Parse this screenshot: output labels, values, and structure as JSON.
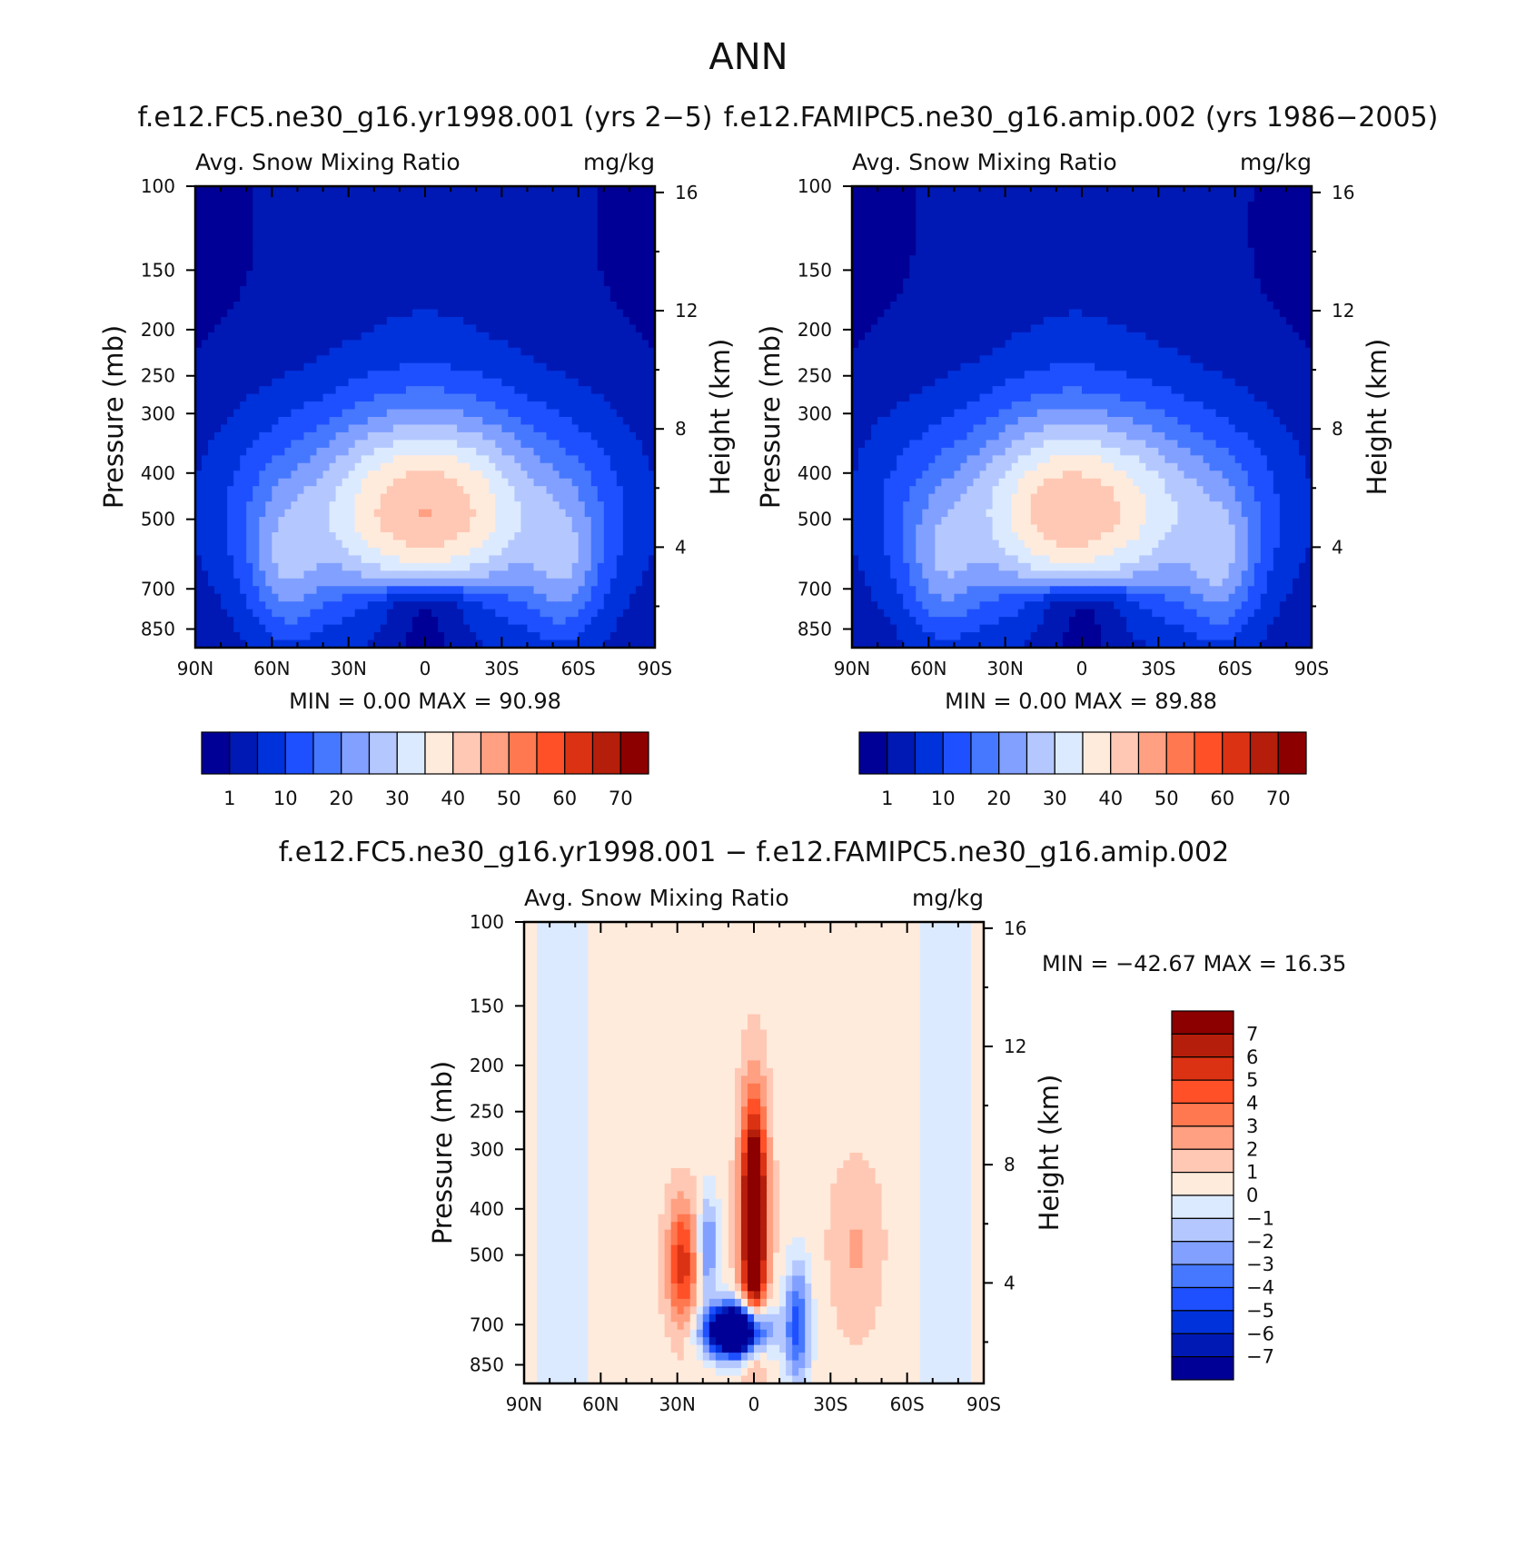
{
  "chart_data": {
    "type": "heatmap",
    "title": "ANN",
    "variable": "Avg. Snow Mixing Ratio",
    "units": "mg/kg",
    "lat_ticks": [
      "90N",
      "60N",
      "30N",
      "0",
      "30S",
      "60S",
      "90S"
    ],
    "pressure_ticks": [
      "100",
      "150",
      "200",
      "250",
      "300",
      "400",
      "500",
      "700",
      "850"
    ],
    "height_ticks": [
      "16",
      "12",
      "8",
      "4"
    ],
    "ylabel": "Pressure (mb)",
    "ylabel_right": "Height (km)",
    "min_label": "MIN =",
    "max_label": "MAX =",
    "panels": [
      {
        "title": "f.e12.FC5.ne30_g16.yr1998.001 (yrs 2-5)",
        "min": "0.00",
        "max": "90.98",
        "colorbar_levels": [
          "1",
          "10",
          "20",
          "30",
          "40",
          "50",
          "60",
          "70"
        ],
        "colors": [
          "#000096",
          "#0019b4",
          "#0032dc",
          "#1e50ff",
          "#4678ff",
          "#82a0ff",
          "#b4c8ff",
          "#dceaff",
          "#ffebdc",
          "#ffc8b4",
          "#ffa082",
          "#ff7850",
          "#ff5028",
          "#dc3214",
          "#b41e0a",
          "#8c0000"
        ]
      },
      {
        "title": "f.e12.FAMIPC5.ne30_g16.amip.002 (yrs 1986-2005)",
        "min": "0.00",
        "max": "89.88",
        "colorbar_levels": [
          "1",
          "10",
          "20",
          "30",
          "40",
          "50",
          "60",
          "70"
        ],
        "colors": [
          "#000096",
          "#0019b4",
          "#0032dc",
          "#1e50ff",
          "#4678ff",
          "#82a0ff",
          "#b4c8ff",
          "#dceaff",
          "#ffebdc",
          "#ffc8b4",
          "#ffa082",
          "#ff7850",
          "#ff5028",
          "#dc3214",
          "#b41e0a",
          "#8c0000"
        ]
      },
      {
        "title": "f.e12.FC5.ne30_g16.yr1998.001 - f.e12.FAMIPC5.ne30_g16.amip.002",
        "min": "-42.67",
        "max": "16.35",
        "colorbar_levels": [
          "7",
          "6",
          "5",
          "4",
          "3",
          "2",
          "1",
          "0",
          "-1",
          "-2",
          "-3",
          "-4",
          "-5",
          "-6",
          "-7"
        ],
        "colors": [
          "#8c0000",
          "#b41e0a",
          "#dc3214",
          "#ff5028",
          "#ff7850",
          "#ffa082",
          "#ffc8b4",
          "#ffebdc",
          "#dceaff",
          "#b4c8ff",
          "#82a0ff",
          "#4678ff",
          "#1e50ff",
          "#0032dc",
          "#0019b4",
          "#000096"
        ]
      }
    ]
  }
}
